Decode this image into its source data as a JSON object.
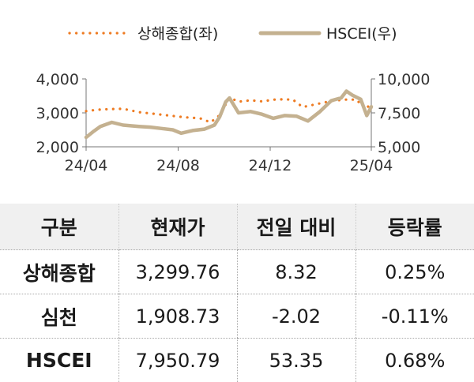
{
  "chart_data": {
    "type": "line",
    "x_ticks": [
      "24/04",
      "24/08",
      "24/12",
      "25/04"
    ],
    "y_left": {
      "ticks": [
        "4,000",
        "3,000",
        "2,000"
      ],
      "ylim": [
        2000,
        4000
      ]
    },
    "y_right": {
      "ticks": [
        "10,000",
        "7,500",
        "5,000"
      ],
      "ylim": [
        5000,
        10000
      ]
    },
    "legend_placement": "top",
    "series": [
      {
        "name": "상해종합(좌)",
        "axis": "left",
        "style": "dotted",
        "color": "#ee7b22",
        "x": [
          "2024-04-01",
          "2024-04-15",
          "2024-05-01",
          "2024-05-20",
          "2024-06-10",
          "2024-07-01",
          "2024-07-20",
          "2024-08-10",
          "2024-08-30",
          "2024-09-13",
          "2024-09-25",
          "2024-10-08",
          "2024-10-20",
          "2024-11-05",
          "2024-11-20",
          "2024-12-10",
          "2024-12-31",
          "2025-01-13",
          "2025-02-01",
          "2025-02-20",
          "2025-03-10",
          "2025-03-25",
          "2025-04-07",
          "2025-04-14"
        ],
        "values": [
          3050,
          3090,
          3110,
          3120,
          3020,
          2970,
          2920,
          2870,
          2840,
          2720,
          2930,
          3450,
          3330,
          3370,
          3340,
          3400,
          3390,
          3170,
          3260,
          3350,
          3390,
          3390,
          3110,
          3300
        ]
      },
      {
        "name": "HSCEI(우)",
        "axis": "right",
        "style": "solid",
        "color": "#c4b190",
        "x": [
          "2024-04-01",
          "2024-04-10",
          "2024-04-20",
          "2024-05-05",
          "2024-05-20",
          "2024-06-10",
          "2024-06-25",
          "2024-07-10",
          "2024-07-25",
          "2024-08-05",
          "2024-08-20",
          "2024-09-05",
          "2024-09-18",
          "2024-09-25",
          "2024-10-03",
          "2024-10-08",
          "2024-10-20",
          "2024-11-05",
          "2024-11-20",
          "2024-12-05",
          "2024-12-20",
          "2025-01-05",
          "2025-01-20",
          "2025-02-05",
          "2025-02-20",
          "2025-03-05",
          "2025-03-12",
          "2025-03-20",
          "2025-03-31",
          "2025-04-08",
          "2025-04-14"
        ],
        "values": [
          5700,
          6100,
          6500,
          6800,
          6600,
          6500,
          6450,
          6350,
          6250,
          6000,
          6200,
          6300,
          6600,
          7200,
          8300,
          8600,
          7500,
          7600,
          7400,
          7100,
          7300,
          7250,
          6900,
          7600,
          8400,
          8600,
          9100,
          8800,
          8500,
          7300,
          7950
        ]
      }
    ]
  },
  "table": {
    "headers": [
      "구분",
      "현재가",
      "전일 대비",
      "등락률"
    ],
    "rows": [
      [
        "상해종합",
        "3,299.76",
        "8.32",
        "0.25%"
      ],
      [
        "심천",
        "1,908.73",
        "-2.02",
        "-0.11%"
      ],
      [
        "HSCEI",
        "7,950.79",
        "53.35",
        "0.68%"
      ]
    ]
  }
}
